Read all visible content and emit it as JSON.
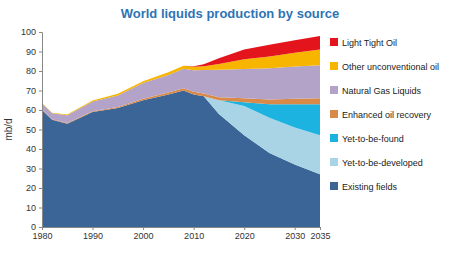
{
  "chart_data": {
    "type": "area",
    "stacked": true,
    "title": "World liquids production by source",
    "y_label": "mb/d",
    "x": [
      1980,
      1982,
      1985,
      1990,
      1995,
      2000,
      2005,
      2008,
      2010,
      2012,
      2015,
      2020,
      2025,
      2030,
      2035
    ],
    "xlim": [
      1980,
      2035
    ],
    "xticks": [
      1980,
      1990,
      2000,
      2010,
      2020,
      2030,
      2035
    ],
    "ylim": [
      0,
      100
    ],
    "yticks": [
      0,
      10,
      20,
      30,
      40,
      50,
      60,
      70,
      80,
      90,
      100
    ],
    "grid": false,
    "legend": "right",
    "series": [
      {
        "name": "Existing fields",
        "color": "#3a6596",
        "values": [
          60,
          55,
          53,
          59,
          61,
          65,
          68,
          70,
          68,
          67,
          58,
          47,
          38,
          32,
          27
        ]
      },
      {
        "name": "Yet-to-be-developed",
        "color": "#a8d4e6",
        "values": [
          0,
          0,
          0,
          0,
          0,
          0,
          0,
          0,
          0,
          0,
          7,
          15,
          18,
          19,
          20
        ]
      },
      {
        "name": "Yet-to-be-found",
        "color": "#1cb3e0",
        "values": [
          0,
          0,
          0,
          0,
          0,
          0,
          0,
          0,
          0,
          0,
          0,
          2,
          7,
          12,
          16
        ]
      },
      {
        "name": "Enhanced oil recovery",
        "color": "#d98a48",
        "values": [
          0.3,
          0.3,
          0.3,
          0.4,
          0.5,
          0.8,
          1,
          1.2,
          1.4,
          1.5,
          1.6,
          2,
          2.4,
          2.8,
          3
        ]
      },
      {
        "name": "Natural Gas Liquids",
        "color": "#b4a3c9",
        "values": [
          3,
          3,
          4,
          5,
          6,
          8,
          9,
          10,
          11,
          12,
          14,
          15,
          16,
          16.5,
          17
        ]
      },
      {
        "name": "Other unconventional oil",
        "color": "#f7b500",
        "values": [
          0.3,
          0.3,
          0.4,
          0.5,
          0.8,
          1,
          1.3,
          1.5,
          1.8,
          2,
          3,
          5,
          6,
          7,
          8
        ]
      },
      {
        "name": "Light Tight Oil",
        "color": "#e3141b",
        "values": [
          0,
          0,
          0,
          0,
          0,
          0,
          0,
          0,
          0.2,
          1,
          3,
          5,
          6,
          6.5,
          7
        ]
      }
    ]
  }
}
